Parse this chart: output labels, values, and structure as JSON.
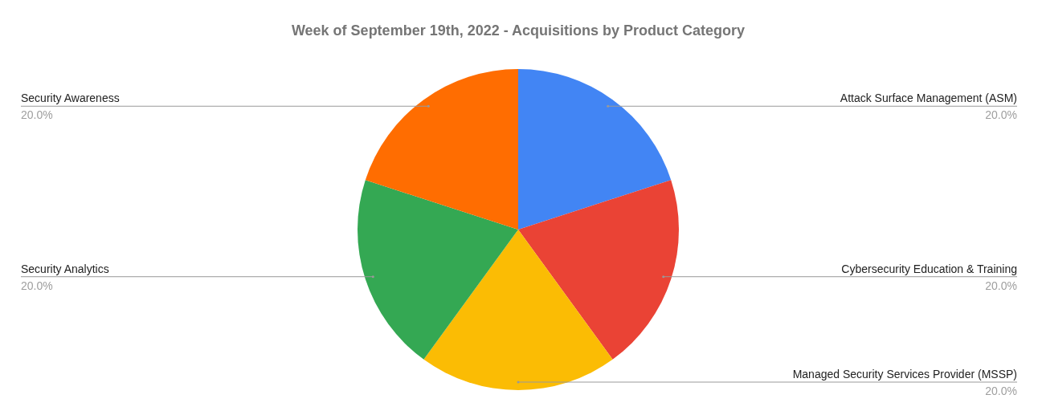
{
  "chart_data": {
    "type": "pie",
    "title": "Week of September 19th, 2022 - Acquisitions by Product Category",
    "categories": [
      "Attack Surface Management (ASM)",
      "Cybersecurity Education & Training",
      "Managed Security Services Provider (MSSP)",
      "Security Analytics",
      "Security Awareness"
    ],
    "values": [
      20,
      20,
      20,
      20,
      20
    ],
    "colors": [
      "#4285f4",
      "#ea4335",
      "#fbbc04",
      "#34a853",
      "#ff6d01"
    ],
    "value_labels": [
      "20.0%",
      "20.0%",
      "20.0%",
      "20.0%",
      "20.0%"
    ],
    "legend": false
  }
}
